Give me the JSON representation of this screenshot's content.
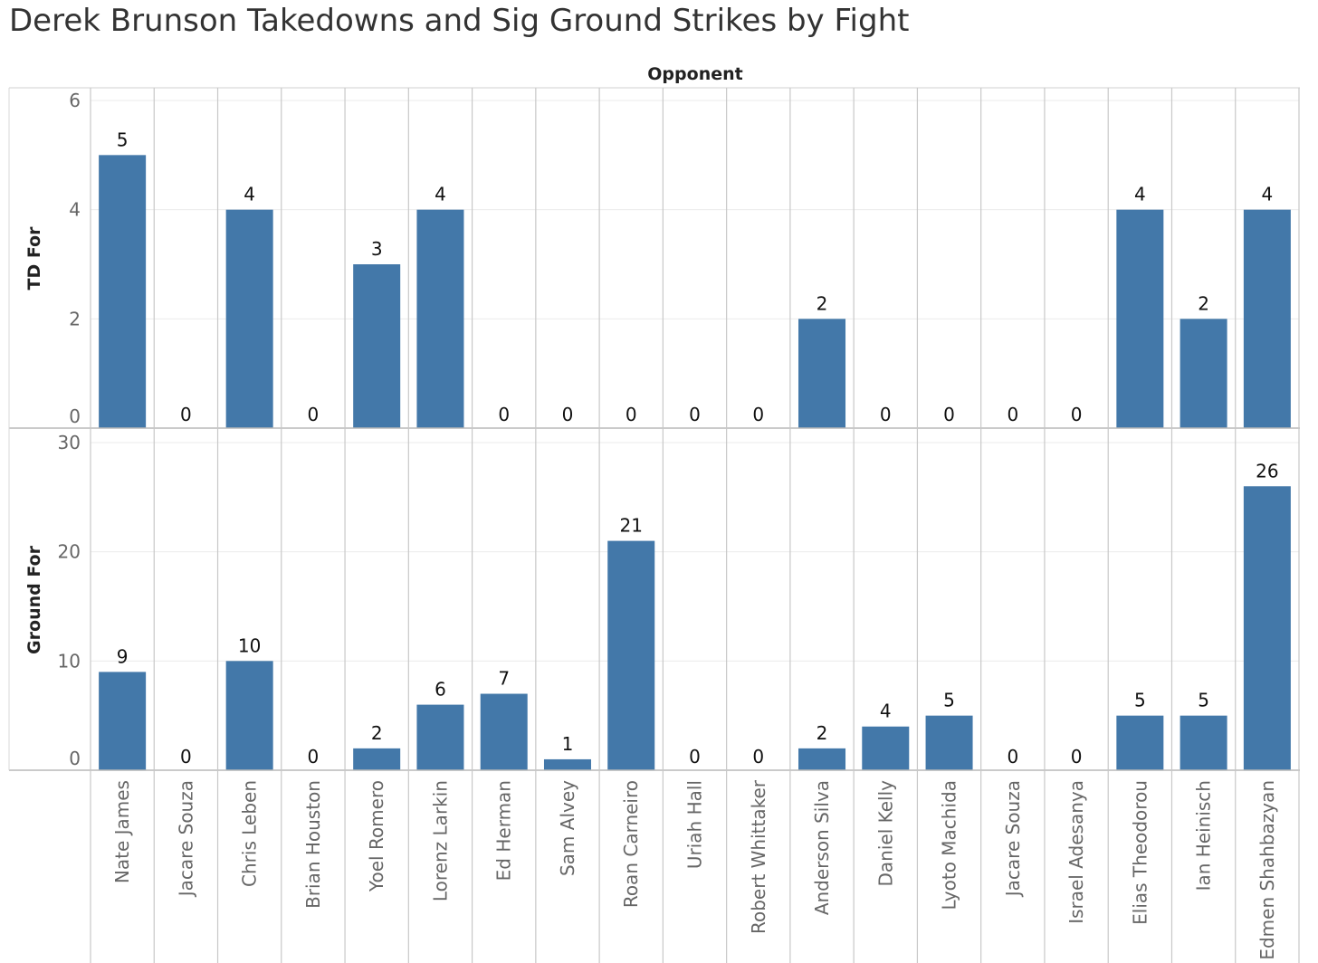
{
  "chart_data": {
    "type": "bar",
    "title": "Derek Brunson Takedowns and Sig Ground Strikes by Fight",
    "header_label": "Opponent",
    "bar_color": "#4378a9",
    "grid": true,
    "categories": [
      "Nate James",
      "Jacare Souza",
      "Chris Leben",
      "Brian Houston",
      "Yoel Romero",
      "Lorenz Larkin",
      "Ed Herman",
      "Sam Alvey",
      "Roan Carneiro",
      "Uriah Hall",
      "Robert Whittaker",
      "Anderson Silva",
      "Daniel Kelly",
      "Lyoto Machida",
      "Jacare Souza",
      "Israel Adesanya",
      "Elias Theodorou",
      "Ian Heinisch",
      "Edmen Shahbazyan"
    ],
    "panels": [
      {
        "ylabel": "TD For",
        "ylim": [
          0,
          6
        ],
        "yticks": [
          0,
          2,
          4,
          6
        ],
        "values": [
          5,
          0,
          4,
          0,
          3,
          4,
          0,
          0,
          0,
          0,
          0,
          2,
          0,
          0,
          0,
          0,
          4,
          2,
          4
        ]
      },
      {
        "ylabel": "Ground For",
        "ylim": [
          0,
          30
        ],
        "yticks": [
          0,
          10,
          20,
          30
        ],
        "values": [
          9,
          0,
          10,
          0,
          2,
          6,
          7,
          1,
          21,
          0,
          0,
          2,
          4,
          5,
          0,
          0,
          5,
          5,
          26
        ]
      }
    ]
  }
}
